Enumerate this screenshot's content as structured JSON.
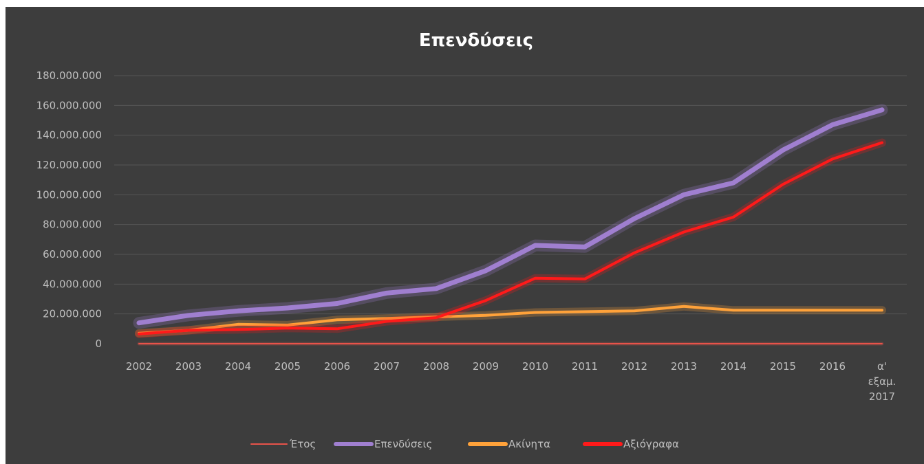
{
  "chart_data": {
    "type": "line",
    "title": "Επενδύσεις",
    "categories": [
      "2002",
      "2003",
      "2004",
      "2005",
      "2006",
      "2007",
      "2008",
      "2009",
      "2010",
      "2011",
      "2012",
      "2013",
      "2014",
      "2015",
      "2016",
      "α' εξαμ. 2017"
    ],
    "ytick_labels": [
      "0",
      "20.000.000",
      "40.000.000",
      "60.000.000",
      "80.000.000",
      "100.000.000",
      "120.000.000",
      "140.000.000",
      "160.000.000",
      "180.000.000"
    ],
    "ylim": [
      0,
      180000000
    ],
    "grid": true,
    "legend_position": "bottom",
    "series": [
      {
        "name": "Έτος",
        "color": "#e8534a",
        "values": [
          2002,
          2003,
          2004,
          2005,
          2006,
          2007,
          2008,
          2009,
          2010,
          2011,
          2012,
          2013,
          2014,
          2015,
          2016,
          2017
        ]
      },
      {
        "name": "Επενδύσεις",
        "color": "#a07fd0",
        "values": [
          14000000,
          19000000,
          22000000,
          24000000,
          27000000,
          34000000,
          37000000,
          49000000,
          66000000,
          65000000,
          84000000,
          100000000,
          108000000,
          130000000,
          147000000,
          157000000
        ]
      },
      {
        "name": "Ακίνητα",
        "color": "#ffa23a",
        "values": [
          7000000,
          9000000,
          13000000,
          12500000,
          16000000,
          17000000,
          18000000,
          19000000,
          21000000,
          21500000,
          22000000,
          25000000,
          22500000,
          22500000,
          22500000,
          22500000
        ]
      },
      {
        "name": "Αξιόγραφα",
        "color": "#ff1a1a",
        "values": [
          6500000,
          9000000,
          9500000,
          10500000,
          10000000,
          15000000,
          17500000,
          29000000,
          44000000,
          43500000,
          61000000,
          75000000,
          85000000,
          107000000,
          124000000,
          135000000
        ]
      }
    ]
  }
}
